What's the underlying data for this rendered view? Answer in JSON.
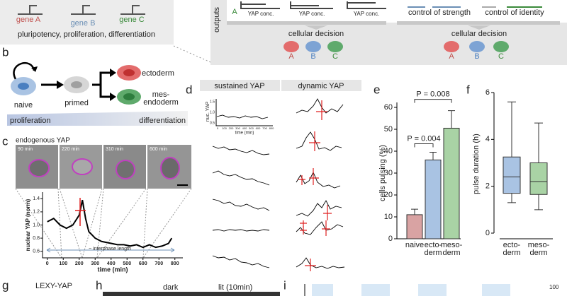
{
  "panel_a": {
    "genes": [
      "gene A",
      "gene B",
      "gene C"
    ],
    "caption": "pluripotency, proliferation, differentiation",
    "outputs_label": "outputs",
    "series_letter": "A",
    "x_labels": [
      "YAP conc.",
      "YAP conc.",
      "YAP conc."
    ],
    "controls": [
      "control of strength",
      "control of identity"
    ],
    "decisions": [
      "cellular decision",
      "cellular decision"
    ],
    "cells": [
      "A",
      "B",
      "C",
      "A",
      "B",
      "C"
    ]
  },
  "panel_b": {
    "letter": "b",
    "naive": "naive",
    "primed": "primed",
    "ectoderm": "ectoderm",
    "mesendoderm": "mes-\nendoderm",
    "proliferation": "proliferation",
    "differentiation": "differentiation"
  },
  "panel_c": {
    "letter": "c",
    "title": "endogenous YAP",
    "frames": [
      "90 min",
      "220 min",
      "310 min",
      "600 min"
    ]
  },
  "panel_d": {
    "letter": "d",
    "headers": [
      "sustained YAP",
      "dynamic YAP"
    ],
    "inset_ylabel": "nuc. YAP",
    "inset_xlabel": "time (min)",
    "inset_yticks": [
      "1.5",
      "1.0",
      "0.5"
    ],
    "inset_xticks": [
      "0",
      "100",
      "200",
      "300",
      "400",
      "500",
      "600",
      "700",
      "800"
    ]
  },
  "panel_e": {
    "letter": "e"
  },
  "panel_f": {
    "letter": "f"
  },
  "panel_g": {
    "letter": "g",
    "title": "LEXY-YAP"
  },
  "panel_h": {
    "letter": "h",
    "conditions": [
      "dark",
      "lit (10min)"
    ]
  },
  "panel_i": {
    "letter": "i",
    "scale_max": "100"
  },
  "chart_data": [
    {
      "type": "line",
      "x": [
        0,
        40,
        80,
        120,
        160,
        200,
        220,
        240,
        260,
        300,
        340,
        400,
        440,
        480,
        520,
        560,
        600,
        640,
        680,
        720,
        760,
        780
      ],
      "values": [
        1.05,
        1.1,
        1.0,
        0.95,
        1.0,
        1.15,
        1.38,
        1.1,
        0.9,
        0.8,
        0.75,
        0.72,
        0.7,
        0.7,
        0.68,
        0.7,
        0.66,
        0.7,
        0.66,
        0.68,
        0.72,
        0.8
      ],
      "color": "#000000",
      "xlabel": "time (min)",
      "ylabel": "nuclear YAP (norm)",
      "annotation": "~ interphase length",
      "xlim": [
        -30,
        850
      ],
      "ylim": [
        0.5,
        1.5
      ],
      "xticks": [
        0,
        100,
        200,
        300,
        400,
        500,
        600,
        700,
        800
      ],
      "yticks": [
        0.6,
        0.8,
        {
          "value": 1,
          "label": "1.0"
        },
        1.2,
        1.4
      ]
    },
    {
      "type": "bar",
      "categories": [
        "naive",
        "ecto-\nderm",
        "meso-\nderm"
      ],
      "values": [
        11,
        36,
        50.5
      ],
      "errors": [
        2.5,
        3.5,
        8
      ],
      "colors": [
        "#d9a3a3",
        "#a9c3e3",
        "#a9d3a5"
      ],
      "ylabel": "cells pulsing (%)",
      "ylim": [
        0,
        60
      ],
      "yticks": [
        0,
        10,
        20,
        30,
        40,
        50,
        60
      ],
      "annotations": [
        "P = 0.004",
        "P = 0.008"
      ]
    },
    {
      "type": "box",
      "categories": [
        "ecto-\nderm",
        "meso-\nderm"
      ],
      "colors": [
        "#a9c3e3",
        "#a9d3a5"
      ],
      "min": [
        1.3,
        1.0
      ],
      "q1": [
        1.7,
        1.65
      ],
      "median": [
        2.4,
        2.2
      ],
      "q3": [
        3.25,
        3.0
      ],
      "max": [
        5.6,
        4.7
      ],
      "ylabel": "pulse duration (h)",
      "ylim": [
        0,
        6
      ],
      "yticks": [
        0,
        2,
        4,
        6
      ]
    }
  ]
}
